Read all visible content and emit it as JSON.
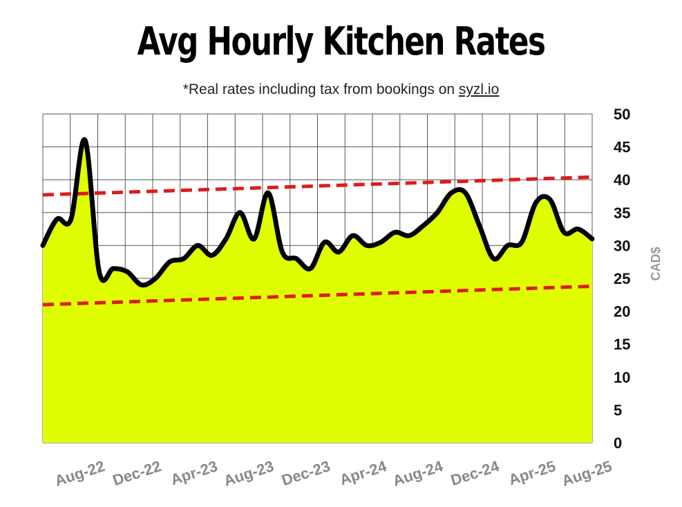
{
  "header": {
    "title": "Avg Hourly Kitchen Rates",
    "subtitle_prefix": "*Real rates including tax from bookings on ",
    "subtitle_link": "syzl.io"
  },
  "chart_data": {
    "type": "area",
    "ylabel": "CAD$",
    "ylim": [
      0,
      50
    ],
    "yticks": [
      0,
      5,
      10,
      15,
      20,
      25,
      30,
      35,
      40,
      45,
      50
    ],
    "xlim": [
      0,
      39
    ],
    "xtick_labels": [
      {
        "label": "Aug-22",
        "x": 3
      },
      {
        "label": "Dec-22",
        "x": 7
      },
      {
        "label": "Apr-23",
        "x": 11
      },
      {
        "label": "Aug-23",
        "x": 15
      },
      {
        "label": "Dec-23",
        "x": 19
      },
      {
        "label": "Apr-24",
        "x": 23
      },
      {
        "label": "Aug-24",
        "x": 27
      },
      {
        "label": "Dec-24",
        "x": 31
      },
      {
        "label": "Apr-25",
        "x": 35
      },
      {
        "label": "Aug-25",
        "x": 39
      }
    ],
    "grid": true,
    "colors": {
      "fill": "#dfff00",
      "line": "#000000",
      "trend": "#dd1c1c",
      "grid": "#555555"
    },
    "series": [
      {
        "x": [
          0,
          1,
          2,
          3,
          4,
          5,
          6,
          7,
          8,
          9,
          10,
          11,
          12,
          13,
          14,
          15,
          16,
          17,
          18,
          19,
          20,
          21,
          22,
          23,
          24,
          25,
          26,
          27,
          28,
          29,
          30,
          31,
          32,
          33,
          34,
          35,
          36,
          37,
          38,
          39
        ],
        "values": [
          30,
          34,
          34,
          46,
          26,
          26.5,
          26,
          24,
          25,
          27.5,
          28,
          30,
          28.5,
          31,
          35,
          31,
          38,
          29,
          28,
          26.5,
          30.5,
          29,
          31.5,
          30,
          30.5,
          32,
          31.5,
          33,
          35,
          38,
          38,
          33,
          28,
          30,
          30.5,
          36.5,
          37,
          32,
          32.5,
          31
        ]
      }
    ],
    "trend_lines": [
      {
        "from": [
          0,
          37.7
        ],
        "to": [
          39,
          40.4
        ]
      },
      {
        "from": [
          0,
          21.0
        ],
        "to": [
          39,
          23.8
        ]
      }
    ]
  }
}
